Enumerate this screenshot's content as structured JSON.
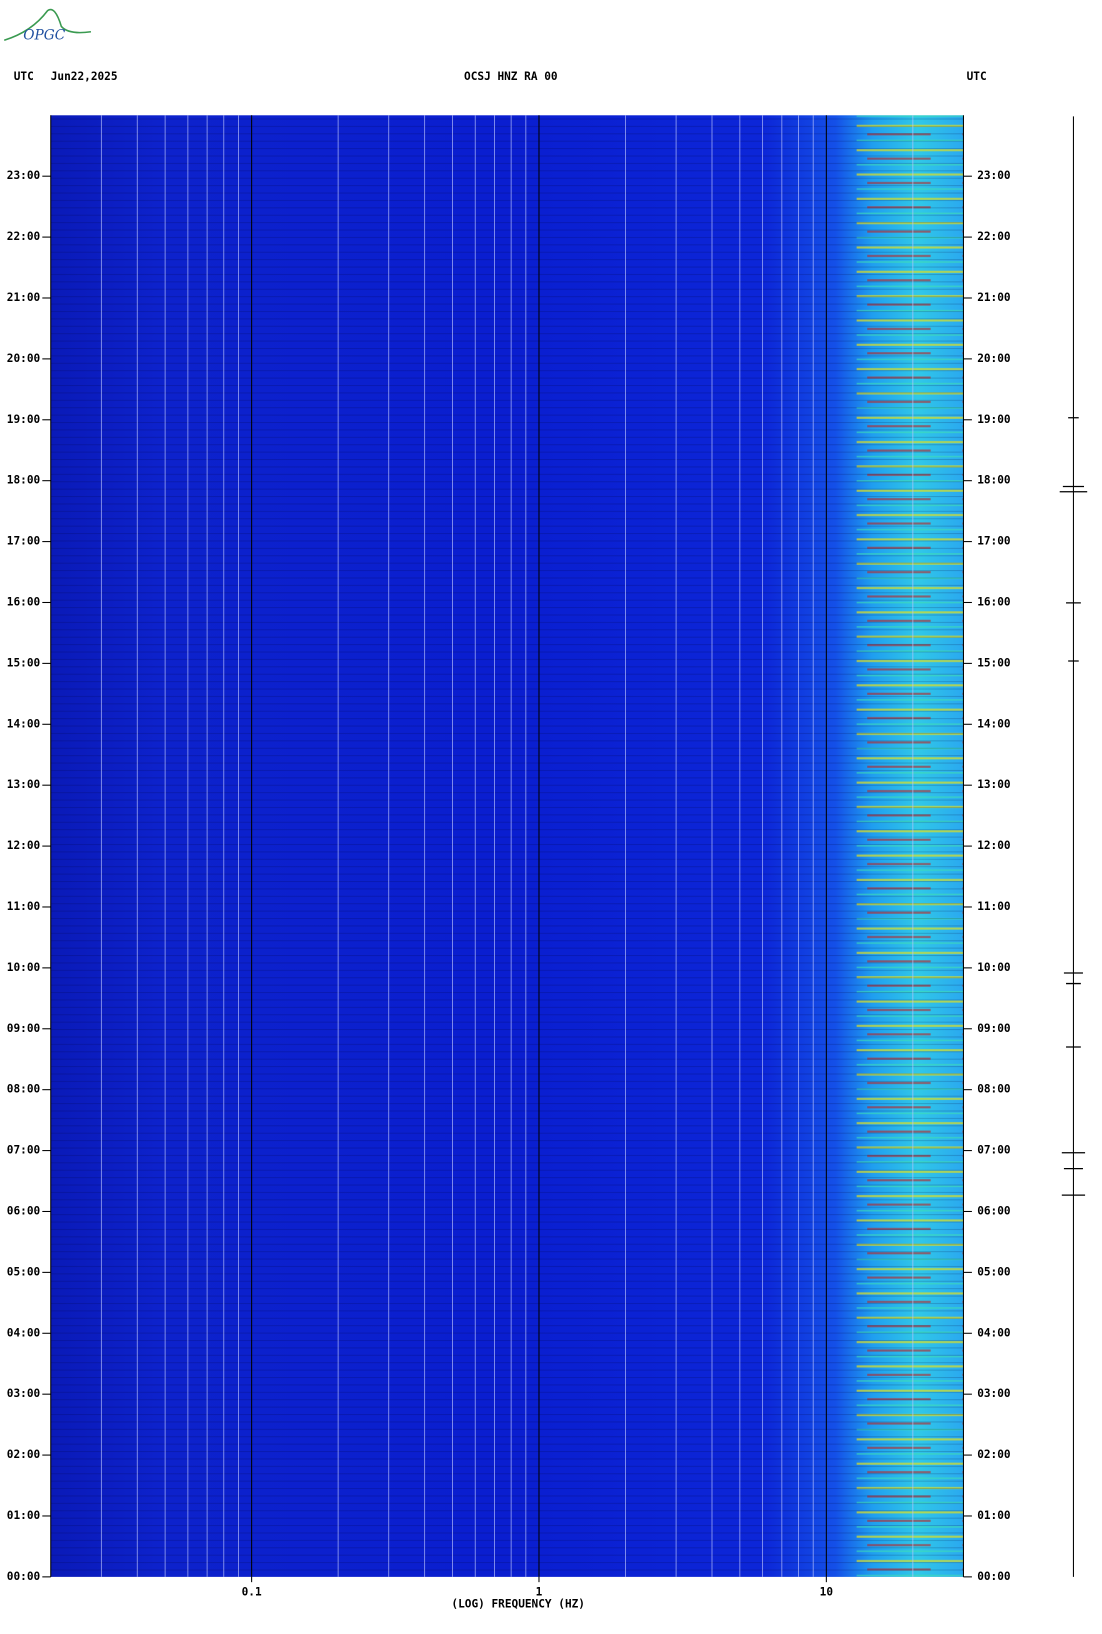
{
  "logo": "OPGC",
  "chart_data": {
    "type": "spectrogram",
    "title": "OCSJ HNZ RA 00",
    "date": "Jun22,2025",
    "left_label": "UTC",
    "right_label": "UTC",
    "x_label": "(LOG) FREQUENCY (HZ)",
    "x_log": true,
    "xlim": [
      0.02,
      30
    ],
    "xticks": [
      0.1,
      1,
      10
    ],
    "xgrid": [
      0.03,
      0.04,
      0.05,
      0.06,
      0.07,
      0.08,
      0.09,
      0.2,
      0.3,
      0.4,
      0.5,
      0.6,
      0.7,
      0.8,
      0.9,
      2,
      3,
      4,
      5,
      6,
      7,
      8,
      9,
      20
    ],
    "ylim": [
      0,
      24
    ],
    "yticks": [
      {
        "value": 0,
        "label": "00:00"
      },
      {
        "value": 1,
        "label": "01:00"
      },
      {
        "value": 2,
        "label": "02:00"
      },
      {
        "value": 3,
        "label": "03:00"
      },
      {
        "value": 4,
        "label": "04:00"
      },
      {
        "value": 5,
        "label": "05:00"
      },
      {
        "value": 6,
        "label": "06:00"
      },
      {
        "value": 7,
        "label": "07:00"
      },
      {
        "value": 8,
        "label": "08:00"
      },
      {
        "value": 9,
        "label": "09:00"
      },
      {
        "value": 10,
        "label": "10:00"
      },
      {
        "value": 11,
        "label": "11:00"
      },
      {
        "value": 12,
        "label": "12:00"
      },
      {
        "value": 13,
        "label": "13:00"
      },
      {
        "value": 14,
        "label": "14:00"
      },
      {
        "value": 15,
        "label": "15:00"
      },
      {
        "value": 16,
        "label": "16:00"
      },
      {
        "value": 17,
        "label": "17:00"
      },
      {
        "value": 18,
        "label": "18:00"
      },
      {
        "value": 19,
        "label": "19:00"
      },
      {
        "value": 20,
        "label": "20:00"
      },
      {
        "value": 21,
        "label": "21:00"
      },
      {
        "value": 22,
        "label": "22:00"
      },
      {
        "value": 23,
        "label": "23:00"
      }
    ]
  }
}
